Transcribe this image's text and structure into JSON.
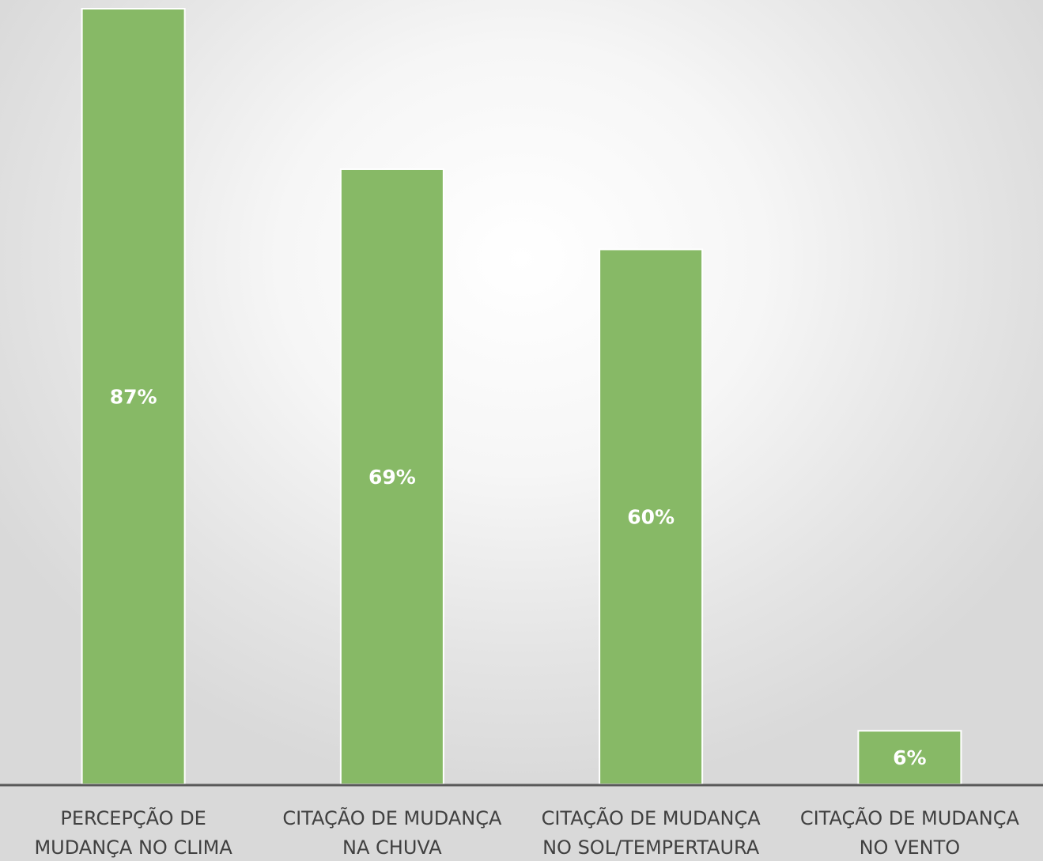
{
  "chart_data": {
    "type": "bar",
    "categories": [
      [
        "PERCEPÇÃO DE",
        "MUDANÇA NO CLIMA"
      ],
      [
        "CITAÇÃO DE MUDANÇA",
        "NA CHUVA"
      ],
      [
        "CITAÇÃO DE MUDANÇA",
        "NO SOL/TEMPERTAURA"
      ],
      [
        "CITAÇÃO DE MUDANÇA",
        "NO VENTO"
      ]
    ],
    "values": [
      87,
      69,
      60,
      6
    ],
    "data_labels": [
      "87%",
      "69%",
      "60%",
      "6%"
    ],
    "unit": "%",
    "title": "",
    "xlabel": "",
    "ylabel": "",
    "ylim": [
      0,
      87
    ],
    "grid": false,
    "legend": "none",
    "colors": {
      "bar": "#87b966",
      "bar_border": "#ffffff",
      "axis": "#595959",
      "data_label": "#ffffff",
      "category_label": "#404040"
    }
  }
}
